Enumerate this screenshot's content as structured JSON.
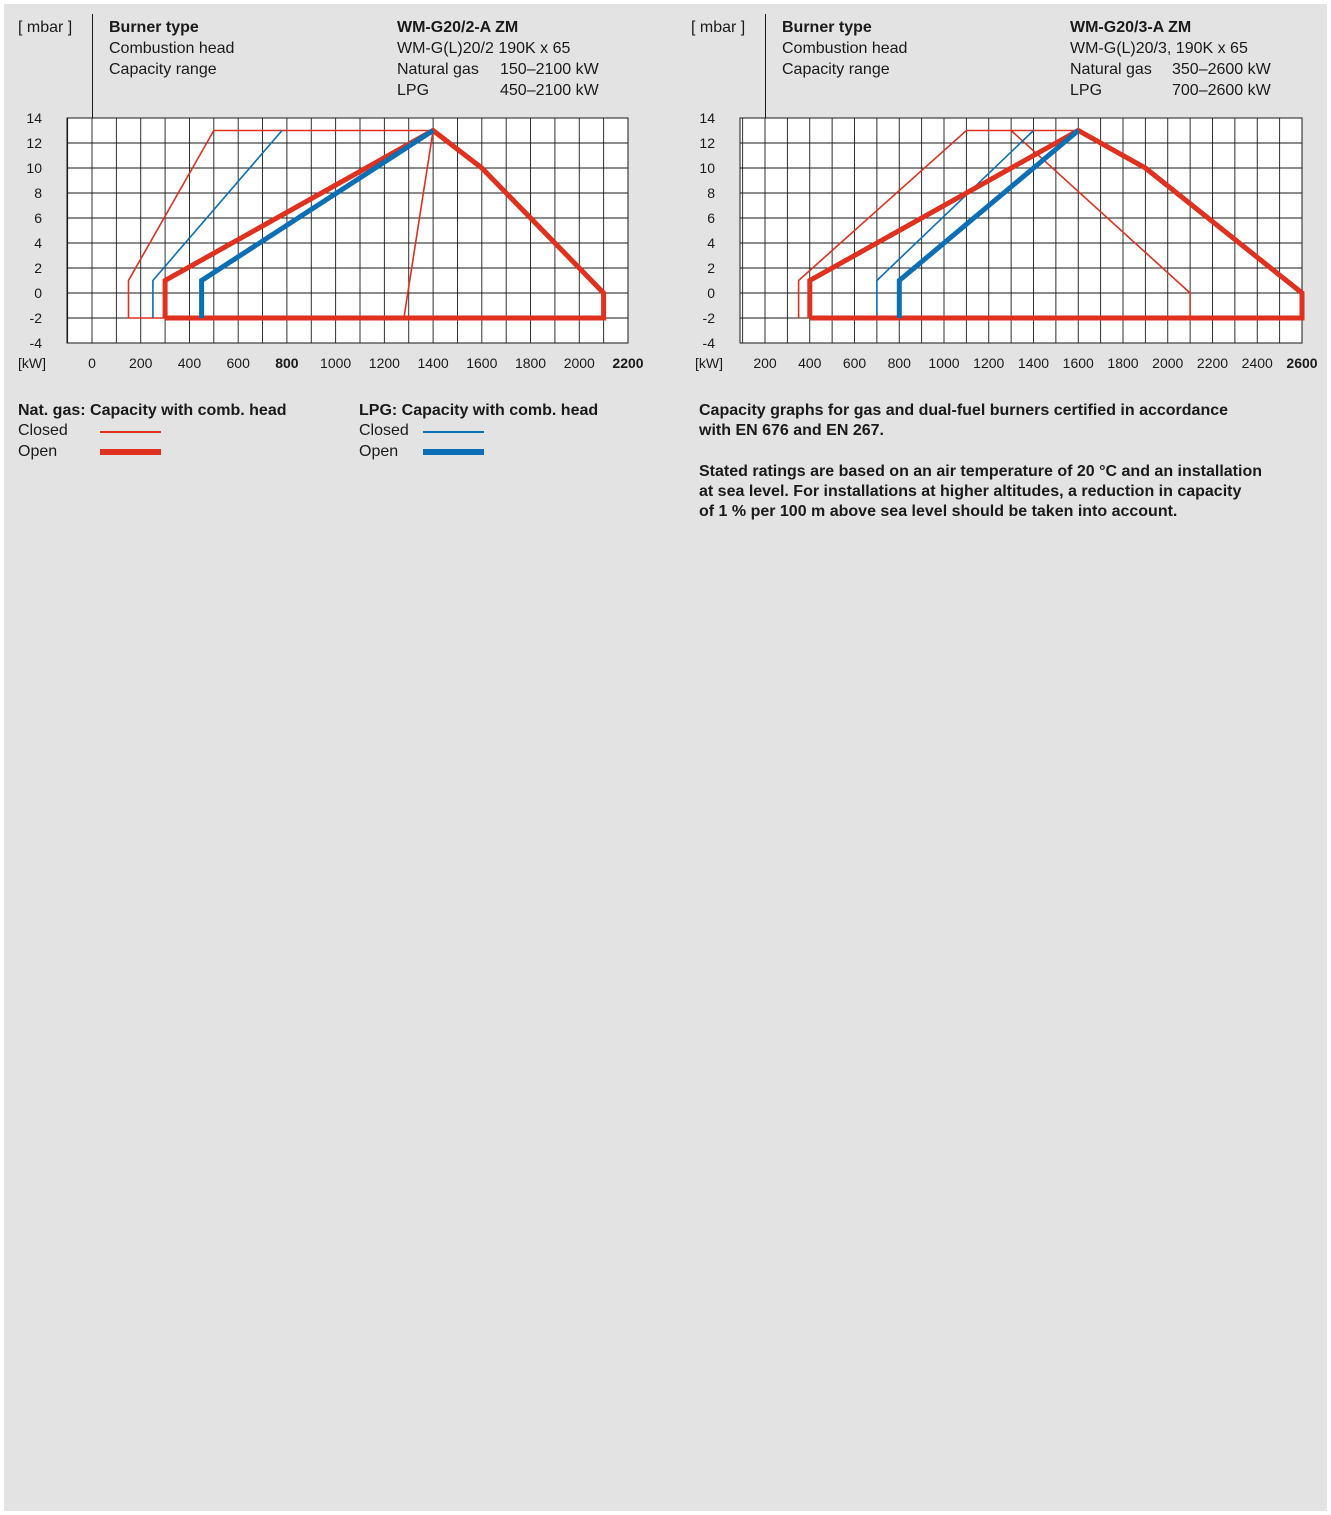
{
  "colors": {
    "natural_gas": "#e0301e",
    "lpg": "#0a6fb5",
    "grid": "#1a1a1a",
    "background": "#e3e3e3",
    "plot_area": "#ffffff"
  },
  "left_header": {
    "unit": "[ mbar ]",
    "burner_type_label": "Burner type",
    "combustion_head_label": "Combustion head",
    "capacity_range_label": "Capacity range",
    "model": "WM-G20/2-A ZM",
    "combustion_head": "WM-G(L)20/2 190K x 65",
    "natural_gas_label": "Natural gas",
    "natural_gas_range": "150–2100 kW",
    "lpg_label": "LPG",
    "lpg_range": "450–2100 kW"
  },
  "right_header": {
    "unit": "[ mbar ]",
    "burner_type_label": "Burner type",
    "combustion_head_label": "Combustion head",
    "capacity_range_label": "Capacity range",
    "model": "WM-G20/3-A ZM",
    "combustion_head": "WM-G(L)20/3, 190K x 65",
    "natural_gas_label": "Natural gas",
    "natural_gas_range": "350–2600 kW",
    "lpg_label": "LPG",
    "lpg_range": "700–2600 kW"
  },
  "legend": {
    "nat_gas_title": "Nat. gas: Capacity with comb. head",
    "lpg_title": "LPG: Capacity with comb. head",
    "closed": "Closed",
    "open": "Open"
  },
  "notes": {
    "paragraph1": [
      "Capacity graphs for gas and dual-fuel burners certified in accordance",
      "with EN 676 and EN 267."
    ],
    "paragraph2": [
      "Stated ratings are based on an air temperature of 20 °C and an installation",
      "at sea level. For installations at higher altitudes, a reduction in capacity",
      "of 1 % per 100 m above sea level should be taken into account."
    ]
  },
  "chart_data": [
    {
      "type": "line",
      "title": "WM-G20/2-A ZM",
      "xlabel": "[kW]",
      "ylabel": "[ mbar ]",
      "xlim": [
        0,
        2200
      ],
      "ylim": [
        -4,
        14
      ],
      "grid": true,
      "x_ticks": [
        "0",
        "200",
        "400",
        "600",
        "800",
        "1000",
        "1200",
        "1400",
        "1600",
        "1800",
        "2000",
        "2200"
      ],
      "x_ticks_bold": [
        "800",
        "2200"
      ],
      "y_ticks": [
        "14",
        "12",
        "10",
        "8",
        "6",
        "4",
        "2",
        "0",
        "-2",
        "-4"
      ],
      "series": [
        {
          "key": "nat_gas_closed",
          "fuel": "natural_gas",
          "head": "closed",
          "points": [
            [
              150,
              -2
            ],
            [
              150,
              1
            ],
            [
              500,
              13
            ],
            [
              1400,
              13
            ],
            [
              1280,
              -2
            ],
            [
              150,
              -2
            ]
          ]
        },
        {
          "key": "lpg_closed",
          "fuel": "lpg",
          "head": "closed",
          "points": [
            [
              250,
              -2
            ],
            [
              250,
              1
            ],
            [
              780,
              13
            ]
          ]
        },
        {
          "key": "nat_gas_open",
          "fuel": "natural_gas",
          "head": "open",
          "points": [
            [
              300,
              -2
            ],
            [
              300,
              1
            ],
            [
              1400,
              13
            ],
            [
              1600,
              10
            ],
            [
              2100,
              0
            ],
            [
              2100,
              -2
            ],
            [
              300,
              -2
            ]
          ]
        },
        {
          "key": "lpg_open",
          "fuel": "lpg",
          "head": "open",
          "points": [
            [
              450,
              -2
            ],
            [
              450,
              1
            ],
            [
              1400,
              13
            ]
          ]
        }
      ]
    },
    {
      "type": "line",
      "title": "WM-G20/3-A ZM",
      "xlabel": "[kW]",
      "ylabel": "[ mbar ]",
      "xlim": [
        200,
        2600
      ],
      "ylim": [
        -4,
        14
      ],
      "grid": true,
      "x_ticks": [
        "200",
        "400",
        "600",
        "800",
        "1000",
        "1200",
        "1400",
        "1600",
        "1800",
        "2000",
        "2200",
        "2400",
        "2600"
      ],
      "x_ticks_bold": [
        "2600"
      ],
      "y_ticks": [
        "14",
        "12",
        "10",
        "8",
        "6",
        "4",
        "2",
        "0",
        "-2",
        "-4"
      ],
      "series": [
        {
          "key": "nat_gas_closed",
          "fuel": "natural_gas",
          "head": "closed",
          "points": [
            [
              350,
              -2
            ],
            [
              350,
              1
            ],
            [
              1100,
              13
            ],
            [
              1600,
              13
            ]
          ]
        },
        {
          "key": "nat_gas_closed_2",
          "fuel": "natural_gas",
          "head": "closed",
          "points": [
            [
              1300,
              13
            ],
            [
              2100,
              0
            ],
            [
              2100,
              -2
            ]
          ]
        },
        {
          "key": "lpg_closed",
          "fuel": "lpg",
          "head": "closed",
          "points": [
            [
              700,
              -2
            ],
            [
              700,
              1
            ],
            [
              1400,
              13
            ]
          ]
        },
        {
          "key": "nat_gas_open",
          "fuel": "natural_gas",
          "head": "open",
          "points": [
            [
              400,
              -2
            ],
            [
              400,
              1
            ],
            [
              1600,
              13
            ],
            [
              1900,
              10
            ],
            [
              2600,
              0
            ],
            [
              2600,
              -2
            ],
            [
              400,
              -2
            ]
          ]
        },
        {
          "key": "lpg_open",
          "fuel": "lpg",
          "head": "open",
          "points": [
            [
              800,
              -2
            ],
            [
              800,
              1
            ],
            [
              1600,
              13
            ]
          ]
        }
      ]
    }
  ]
}
